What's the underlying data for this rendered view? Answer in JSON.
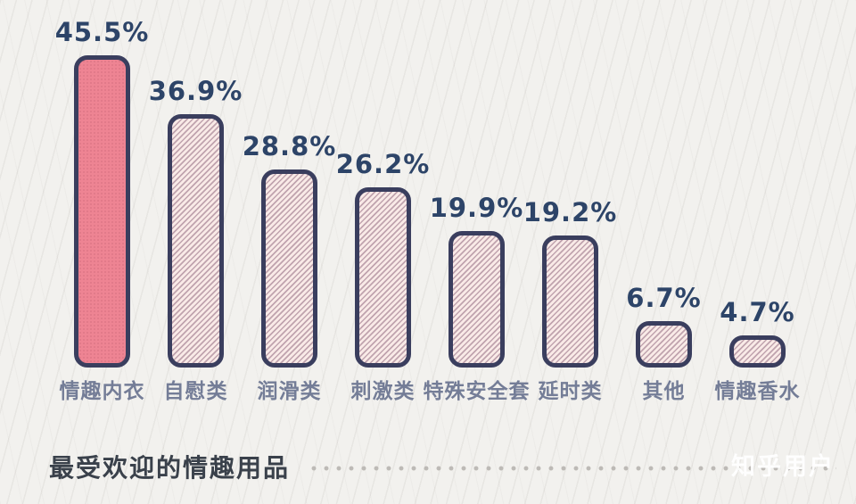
{
  "chart_data": {
    "type": "bar",
    "title": "最受欢迎的情趣用品",
    "categories": [
      "情趣内衣",
      "自慰类",
      "润滑类",
      "刺激类",
      "特殊安全套",
      "延时类",
      "其他",
      "情趣香水"
    ],
    "values": [
      45.5,
      36.9,
      28.8,
      26.2,
      19.9,
      19.2,
      6.7,
      4.7
    ],
    "value_labels": [
      "45.5%",
      "36.9%",
      "28.8%",
      "26.2%",
      "19.9%",
      "19.2%",
      "6.7%",
      "4.7%"
    ],
    "highlight_index": 0,
    "ylim": [
      0,
      50
    ],
    "grid": false,
    "legend": "none",
    "xlabel": "",
    "ylabel": "",
    "colors": {
      "background": "#f2f1ee",
      "bar_fill_highlight": "#ee8493",
      "bar_hatch_bg": "#f9eae7",
      "bar_hatch_stripe": "#c0a3ae",
      "bar_border": "#3a3e5e",
      "value_label": "#2d4468",
      "category_label": "#747d97",
      "title": "#3a414b",
      "dots": "#bdbab6"
    }
  },
  "footer": {
    "title": "最受欢迎的情趣用品",
    "watermark": "知乎用户"
  }
}
